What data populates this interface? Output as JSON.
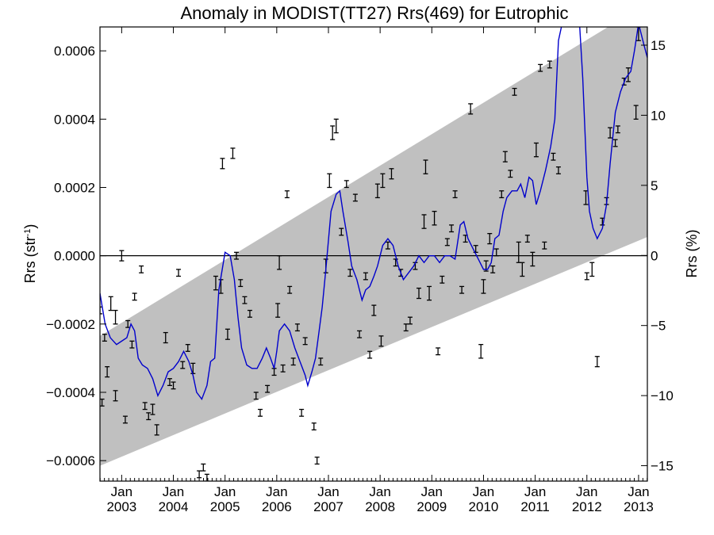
{
  "chart_data": {
    "type": "scatter",
    "title": "Anomaly in MODIST(TT27) Rrs(469) for Eutrophic",
    "ylabel_left": "Rrs (str",
    "ylabel_left_sup": "-1",
    "ylabel_left_close": ")",
    "ylabel_right": "Rrs (%)",
    "xlabel": "",
    "xlim": [
      2002.58,
      2013.17
    ],
    "ylim_left": [
      -0.00066,
      0.00067
    ],
    "ylim_right": [
      -16.1,
      16.3
    ],
    "x_ticks_month": [
      "Jan",
      "Jan",
      "Jan",
      "Jan",
      "Jan",
      "Jan",
      "Jan",
      "Jan",
      "Jan",
      "Jan",
      "Jan"
    ],
    "x_ticks_year": [
      "2003",
      "2004",
      "2005",
      "2006",
      "2007",
      "2008",
      "2009",
      "2010",
      "2011",
      "2012",
      "2013"
    ],
    "x_tick_values": [
      2003,
      2004,
      2005,
      2006,
      2007,
      2008,
      2009,
      2010,
      2011,
      2012,
      2013
    ],
    "y_ticks_left": [
      {
        "v": 0.0006,
        "label": "0.0006"
      },
      {
        "v": 0.0004,
        "label": "0.0004"
      },
      {
        "v": 0.0002,
        "label": "0.0002"
      },
      {
        "v": 0.0,
        "label": "0.0000"
      },
      {
        "v": -0.0002,
        "label": "−0.0002"
      },
      {
        "v": -0.0004,
        "label": "−0.0004"
      },
      {
        "v": -0.0006,
        "label": "−0.0006"
      }
    ],
    "y_ticks_right": [
      {
        "v": 15,
        "label": "15"
      },
      {
        "v": 10,
        "label": "10"
      },
      {
        "v": 5,
        "label": "5"
      },
      {
        "v": 0,
        "label": "0"
      },
      {
        "v": -5,
        "label": "−5"
      },
      {
        "v": -10,
        "label": "−10"
      },
      {
        "v": -15,
        "label": "−15"
      }
    ],
    "trend_band": {
      "color": "#c0c0c0",
      "upper": [
        [
          2002.58,
          -0.000235
        ],
        [
          2013.17,
          0.00074
        ]
      ],
      "lower": [
        [
          2002.58,
          -0.000615
        ],
        [
          2013.17,
          5.5e-05
        ]
      ]
    },
    "zero_line": 0,
    "smoothed_series": {
      "color": "#0000cc",
      "points": [
        [
          2002.58,
          -0.00011
        ],
        [
          2002.68,
          -0.0002
        ],
        [
          2002.78,
          -0.00024
        ],
        [
          2002.9,
          -0.00026
        ],
        [
          2003.0,
          -0.00025
        ],
        [
          2003.1,
          -0.00024
        ],
        [
          2003.18,
          -0.0002
        ],
        [
          2003.25,
          -0.00022
        ],
        [
          2003.32,
          -0.0003
        ],
        [
          2003.4,
          -0.00032
        ],
        [
          2003.5,
          -0.00033
        ],
        [
          2003.6,
          -0.00036
        ],
        [
          2003.7,
          -0.00041
        ],
        [
          2003.8,
          -0.00038
        ],
        [
          2003.9,
          -0.00034
        ],
        [
          2004.0,
          -0.00033
        ],
        [
          2004.1,
          -0.00031
        ],
        [
          2004.2,
          -0.00028
        ],
        [
          2004.3,
          -0.00031
        ],
        [
          2004.38,
          -0.00035
        ],
        [
          2004.45,
          -0.0004
        ],
        [
          2004.55,
          -0.00042
        ],
        [
          2004.65,
          -0.00038
        ],
        [
          2004.72,
          -0.00031
        ],
        [
          2004.8,
          -0.0003
        ],
        [
          2004.88,
          -0.0001
        ],
        [
          2005.0,
          1e-05
        ],
        [
          2005.1,
          0.0
        ],
        [
          2005.18,
          -7e-05
        ],
        [
          2005.25,
          -0.00018
        ],
        [
          2005.32,
          -0.00027
        ],
        [
          2005.42,
          -0.00032
        ],
        [
          2005.52,
          -0.00033
        ],
        [
          2005.62,
          -0.00033
        ],
        [
          2005.72,
          -0.0003
        ],
        [
          2005.8,
          -0.00027
        ],
        [
          2005.88,
          -0.0003
        ],
        [
          2005.95,
          -0.00033
        ],
        [
          2006.0,
          -0.00028
        ],
        [
          2006.05,
          -0.00022
        ],
        [
          2006.15,
          -0.0002
        ],
        [
          2006.25,
          -0.00022
        ],
        [
          2006.35,
          -0.00027
        ],
        [
          2006.45,
          -0.00031
        ],
        [
          2006.55,
          -0.00035
        ],
        [
          2006.6,
          -0.00038
        ],
        [
          2006.68,
          -0.00034
        ],
        [
          2006.75,
          -0.0003
        ],
        [
          2006.82,
          -0.00022
        ],
        [
          2006.88,
          -0.00015
        ],
        [
          2006.95,
          -4e-05
        ],
        [
          2007.05,
          0.00013
        ],
        [
          2007.15,
          0.00018
        ],
        [
          2007.22,
          0.00019
        ],
        [
          2007.28,
          0.00013
        ],
        [
          2007.38,
          4e-05
        ],
        [
          2007.45,
          -3e-05
        ],
        [
          2007.55,
          -7e-05
        ],
        [
          2007.65,
          -0.00013
        ],
        [
          2007.72,
          -0.0001
        ],
        [
          2007.8,
          -9e-05
        ],
        [
          2007.88,
          -6e-05
        ],
        [
          2007.95,
          -3e-05
        ],
        [
          2008.05,
          3e-05
        ],
        [
          2008.15,
          5e-05
        ],
        [
          2008.25,
          3e-05
        ],
        [
          2008.35,
          -3e-05
        ],
        [
          2008.45,
          -7e-05
        ],
        [
          2008.55,
          -5e-05
        ],
        [
          2008.65,
          -3e-05
        ],
        [
          2008.75,
          0.0
        ],
        [
          2008.85,
          -2e-05
        ],
        [
          2008.95,
          0.0
        ],
        [
          2009.05,
          0.0
        ],
        [
          2009.15,
          -2e-05
        ],
        [
          2009.25,
          0.0
        ],
        [
          2009.35,
          0.0
        ],
        [
          2009.45,
          -1e-05
        ],
        [
          2009.55,
          9e-05
        ],
        [
          2009.62,
          0.0001
        ],
        [
          2009.7,
          5e-05
        ],
        [
          2009.8,
          2e-05
        ],
        [
          2009.9,
          -1e-05
        ],
        [
          2010.0,
          -4e-05
        ],
        [
          2010.08,
          -4e-05
        ],
        [
          2010.15,
          -2e-05
        ],
        [
          2010.22,
          5e-05
        ],
        [
          2010.3,
          6e-05
        ],
        [
          2010.38,
          0.00013
        ],
        [
          2010.45,
          0.00017
        ],
        [
          2010.55,
          0.00019
        ],
        [
          2010.65,
          0.00019
        ],
        [
          2010.72,
          0.00021
        ],
        [
          2010.8,
          0.00017
        ],
        [
          2010.88,
          0.00023
        ],
        [
          2010.95,
          0.00022
        ],
        [
          2011.02,
          0.00015
        ],
        [
          2011.1,
          0.00019
        ],
        [
          2011.2,
          0.00025
        ],
        [
          2011.3,
          0.00032
        ],
        [
          2011.38,
          0.0004
        ],
        [
          2011.45,
          0.00063
        ],
        [
          2011.55,
          0.0007
        ],
        [
          2011.65,
          0.0007
        ],
        [
          2011.75,
          0.0007
        ],
        [
          2011.85,
          0.0007
        ],
        [
          2011.92,
          0.00052
        ],
        [
          2012.0,
          0.00023
        ],
        [
          2012.05,
          0.00013
        ],
        [
          2012.12,
          8e-05
        ],
        [
          2012.2,
          5e-05
        ],
        [
          2012.3,
          8e-05
        ],
        [
          2012.38,
          0.00015
        ],
        [
          2012.45,
          0.00027
        ],
        [
          2012.55,
          0.00042
        ],
        [
          2012.65,
          0.00048
        ],
        [
          2012.75,
          0.00052
        ],
        [
          2012.85,
          0.00054
        ],
        [
          2012.92,
          0.0006
        ],
        [
          2013.0,
          0.00068
        ],
        [
          2013.1,
          0.00062
        ],
        [
          2013.17,
          0.00058
        ]
      ]
    },
    "monthly_anomalies": {
      "color": "#000000",
      "points": [
        [
          2002.58,
          -0.00016,
          1e-05
        ],
        [
          2002.62,
          -0.00043,
          1e-05
        ],
        [
          2002.67,
          -0.00024,
          1e-05
        ],
        [
          2002.72,
          -0.00034,
          1.5e-05
        ],
        [
          2002.79,
          -0.00014,
          2e-05
        ],
        [
          2002.88,
          -0.00041,
          1.5e-05
        ],
        [
          2002.88,
          -0.00018,
          2e-05
        ],
        [
          2003.0,
          0.0,
          1.5e-05
        ],
        [
          2003.07,
          -0.00048,
          1e-05
        ],
        [
          2003.12,
          -0.0002,
          1e-05
        ],
        [
          2003.2,
          -0.00026,
          1e-05
        ],
        [
          2003.25,
          -0.00012,
          1e-05
        ],
        [
          2003.38,
          -4e-05,
          1e-05
        ],
        [
          2003.45,
          -0.00044,
          1e-05
        ],
        [
          2003.52,
          -0.00047,
          1e-05
        ],
        [
          2003.6,
          -0.00045,
          1.5e-05
        ],
        [
          2003.68,
          -0.00051,
          1.5e-05
        ],
        [
          2003.85,
          -0.00024,
          1.5e-05
        ],
        [
          2003.93,
          -0.00037,
          1e-05
        ],
        [
          2004.0,
          -0.00038,
          1e-05
        ],
        [
          2004.1,
          -5e-05,
          1e-05
        ],
        [
          2004.18,
          -0.00032,
          1e-05
        ],
        [
          2004.28,
          -0.00027,
          1e-05
        ],
        [
          2004.38,
          -0.00033,
          1.5e-05
        ],
        [
          2004.5,
          -0.00064,
          1e-05
        ],
        [
          2004.58,
          -0.00062,
          1e-05
        ],
        [
          2004.65,
          -0.00065,
          1e-05
        ],
        [
          2004.82,
          -8e-05,
          2e-05
        ],
        [
          2004.92,
          -9e-05,
          2e-05
        ],
        [
          2004.95,
          0.00027,
          1.5e-05
        ],
        [
          2005.05,
          -0.00023,
          1.5e-05
        ],
        [
          2005.15,
          0.0003,
          1.5e-05
        ],
        [
          2005.22,
          0.0,
          1e-05
        ],
        [
          2005.3,
          -8e-05,
          1e-05
        ],
        [
          2005.38,
          -0.00013,
          1e-05
        ],
        [
          2005.48,
          -0.00017,
          1e-05
        ],
        [
          2005.6,
          -0.00041,
          1e-05
        ],
        [
          2005.68,
          -0.00046,
          1e-05
        ],
        [
          2005.82,
          -0.00039,
          1e-05
        ],
        [
          2005.95,
          -0.00034,
          1e-05
        ],
        [
          2006.02,
          -0.00016,
          2e-05
        ],
        [
          2006.05,
          -2e-05,
          2e-05
        ],
        [
          2006.12,
          -0.00033,
          1e-05
        ],
        [
          2006.2,
          0.00018,
          1e-05
        ],
        [
          2006.25,
          -0.0001,
          1e-05
        ],
        [
          2006.32,
          -0.00031,
          1e-05
        ],
        [
          2006.4,
          -0.00021,
          1e-05
        ],
        [
          2006.48,
          -0.00046,
          1e-05
        ],
        [
          2006.55,
          -0.00025,
          1e-05
        ],
        [
          2006.72,
          -0.0005,
          1e-05
        ],
        [
          2006.78,
          -0.0006,
          1e-05
        ],
        [
          2006.85,
          -0.00031,
          1e-05
        ],
        [
          2006.95,
          -3e-05,
          2e-05
        ],
        [
          2007.02,
          0.00022,
          2e-05
        ],
        [
          2007.08,
          0.00036,
          2e-05
        ],
        [
          2007.15,
          0.00038,
          2e-05
        ],
        [
          2007.25,
          7e-05,
          1e-05
        ],
        [
          2007.35,
          0.00021,
          1e-05
        ],
        [
          2007.42,
          -5e-05,
          1e-05
        ],
        [
          2007.52,
          0.00017,
          1e-05
        ],
        [
          2007.6,
          -0.00023,
          1e-05
        ],
        [
          2007.72,
          -6e-05,
          1e-05
        ],
        [
          2007.8,
          -0.00029,
          1e-05
        ],
        [
          2007.88,
          -0.00016,
          1.5e-05
        ],
        [
          2007.95,
          0.00019,
          2e-05
        ],
        [
          2008.02,
          -0.00025,
          1.5e-05
        ],
        [
          2008.05,
          0.00022,
          2e-05
        ],
        [
          2008.15,
          3e-05,
          1e-05
        ],
        [
          2008.22,
          0.00024,
          1.5e-05
        ],
        [
          2008.3,
          -2e-05,
          1e-05
        ],
        [
          2008.4,
          -5e-05,
          1e-05
        ],
        [
          2008.5,
          -0.00021,
          1e-05
        ],
        [
          2008.58,
          -0.00019,
          1e-05
        ],
        [
          2008.68,
          -3e-05,
          1e-05
        ],
        [
          2008.75,
          -0.00011,
          1.5e-05
        ],
        [
          2008.85,
          0.0001,
          2e-05
        ],
        [
          2008.88,
          0.00026,
          2e-05
        ],
        [
          2008.95,
          -0.00011,
          2e-05
        ],
        [
          2009.05,
          0.00011,
          2e-05
        ],
        [
          2009.12,
          -0.00028,
          1e-05
        ],
        [
          2009.2,
          -7e-05,
          1e-05
        ],
        [
          2009.3,
          4e-05,
          1e-05
        ],
        [
          2009.38,
          8e-05,
          1e-05
        ],
        [
          2009.45,
          0.00018,
          1e-05
        ],
        [
          2009.58,
          -0.0001,
          1e-05
        ],
        [
          2009.65,
          5e-05,
          1e-05
        ],
        [
          2009.75,
          0.00043,
          1.5e-05
        ],
        [
          2009.85,
          2e-05,
          1e-05
        ],
        [
          2009.95,
          -0.00028,
          2e-05
        ],
        [
          2010.0,
          -9e-05,
          2e-05
        ],
        [
          2010.05,
          -3e-05,
          1.5e-05
        ],
        [
          2010.12,
          5e-05,
          1.5e-05
        ],
        [
          2010.18,
          -4e-05,
          1e-05
        ],
        [
          2010.25,
          1e-05,
          1e-05
        ],
        [
          2010.35,
          0.00018,
          1e-05
        ],
        [
          2010.42,
          0.00029,
          1.5e-05
        ],
        [
          2010.52,
          0.00024,
          1e-05
        ],
        [
          2010.6,
          0.00048,
          1e-05
        ],
        [
          2010.68,
          1e-05,
          3e-05
        ],
        [
          2010.75,
          -4e-05,
          2e-05
        ],
        [
          2010.85,
          5e-05,
          1e-05
        ],
        [
          2010.95,
          -1e-05,
          2e-05
        ],
        [
          2011.02,
          0.00031,
          2e-05
        ],
        [
          2011.1,
          0.00055,
          1e-05
        ],
        [
          2011.18,
          3e-05,
          1e-05
        ],
        [
          2011.28,
          0.00056,
          1e-05
        ],
        [
          2011.35,
          0.00029,
          1e-05
        ],
        [
          2011.45,
          0.00025,
          1e-05
        ],
        [
          2011.98,
          0.00017,
          2e-05
        ],
        [
          2012.0,
          -6e-05,
          1e-05
        ],
        [
          2012.1,
          -4e-05,
          2e-05
        ],
        [
          2012.2,
          -0.00031,
          1.5e-05
        ],
        [
          2012.3,
          0.0001,
          1e-05
        ],
        [
          2012.38,
          0.00016,
          1e-05
        ],
        [
          2012.45,
          0.00036,
          1.5e-05
        ],
        [
          2012.55,
          0.00033,
          1e-05
        ],
        [
          2012.6,
          0.00037,
          1e-05
        ],
        [
          2012.72,
          0.00051,
          1e-05
        ],
        [
          2012.8,
          0.00053,
          2e-05
        ],
        [
          2012.95,
          0.00042,
          2e-05
        ],
        [
          2013.0,
          0.00065,
          2e-05
        ]
      ]
    },
    "grid": false,
    "legend": "none"
  }
}
